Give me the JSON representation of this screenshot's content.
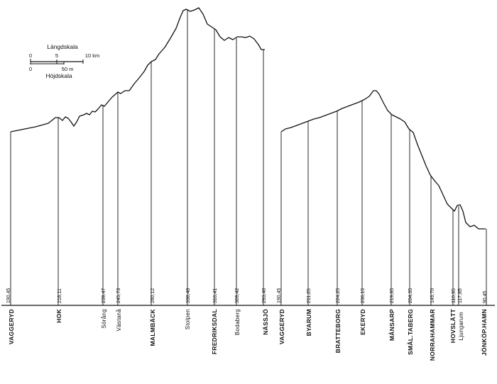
{
  "scale": {
    "length_title": "Längdskala",
    "height_title": "Höjdskala",
    "length_ticks": [
      "0",
      "5",
      "10 km"
    ],
    "height_ticks": [
      "0",
      "50 m"
    ]
  },
  "profiles": [
    {
      "id": "vaggeryd-nassjo",
      "stations": [
        {
          "name": "VAGGERYD",
          "elevation": "190,45",
          "bold": true
        },
        {
          "name": "HOK",
          "elevation": "218,11",
          "bold": true
        },
        {
          "name": "Sörång",
          "elevation": "239,47",
          "bold": false
        },
        {
          "name": "Västanå",
          "elevation": "245,73",
          "bold": false
        },
        {
          "name": "MALMBÄCK",
          "elevation": "280,12",
          "bold": true
        },
        {
          "name": "Stolpen",
          "elevation": "338,48",
          "bold": false
        },
        {
          "name": "FREDRIKSDAL",
          "elevation": "316,41",
          "bold": true
        },
        {
          "name": "Bodaberg",
          "elevation": "309,42",
          "bold": false
        },
        {
          "name": "NÄSSJÖ",
          "elevation": "293,40",
          "bold": true
        }
      ]
    },
    {
      "id": "vaggeryd-jonkoping",
      "stations": [
        {
          "name": "VAGGERYD",
          "elevation": "190,45",
          "bold": true
        },
        {
          "name": "BYARUM",
          "elevation": "211,25",
          "bold": true
        },
        {
          "name": "BRATTEBORG",
          "elevation": "224,25",
          "bold": true
        },
        {
          "name": "EKERYD",
          "elevation": "236,15",
          "bold": true
        },
        {
          "name": "MÅNSARP",
          "elevation": "219,85",
          "bold": true
        },
        {
          "name": "SMÅL.TABERG",
          "elevation": "204,35",
          "bold": true
        },
        {
          "name": "NORRAHAMMAR",
          "elevation": "149,70",
          "bold": true
        },
        {
          "name": "HOVSLÄTT",
          "elevation": "110,95",
          "bold": true
        },
        {
          "name": "Ljungarum",
          "elevation": "117,85",
          "bold": false
        },
        {
          "name": "JÖNKÖP.HAMN",
          "elevation": "90,45",
          "bold": true
        }
      ]
    }
  ]
}
